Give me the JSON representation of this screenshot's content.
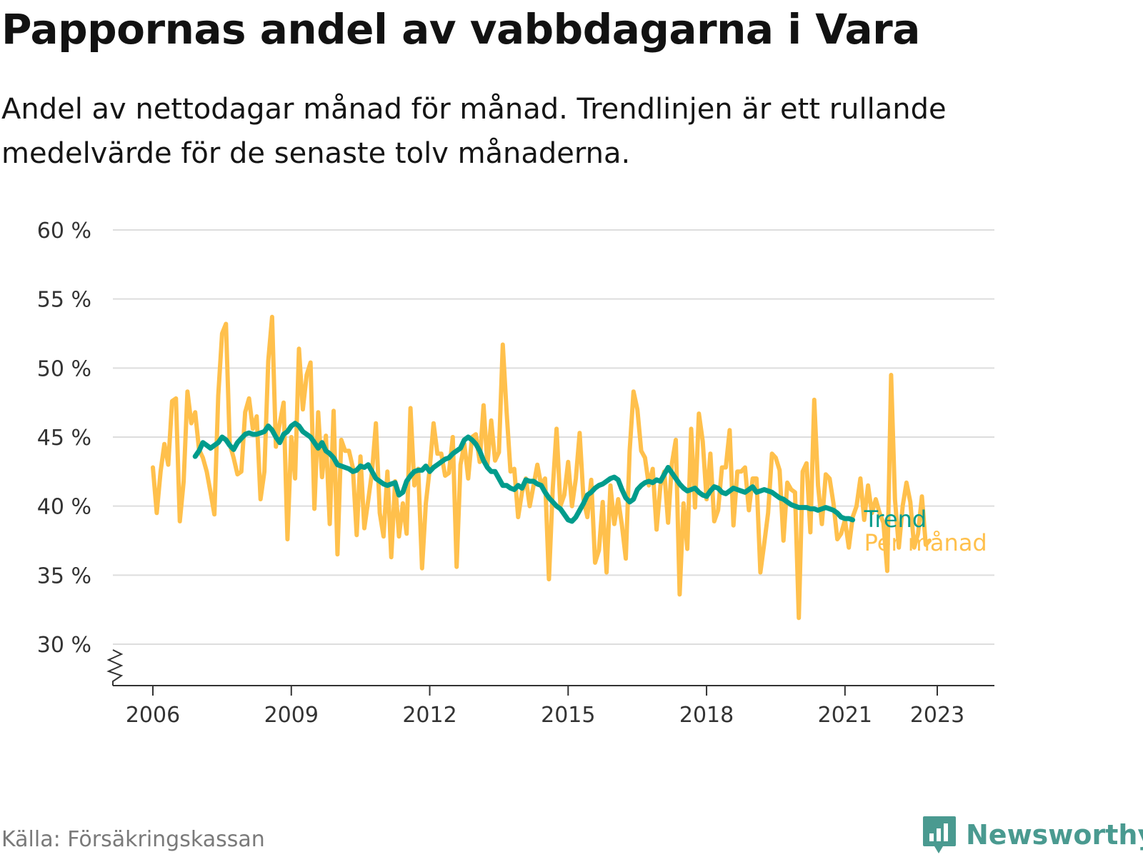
{
  "title": "Pappornas andel av vabbdagarna i Vara",
  "subtitle": "Andel av nettodagar månad för månad. Trendlinjen är ett rullande medelvärde för de senaste tolv månaderna.",
  "source": "Källa: Försäkringskassan",
  "brand": "Newsworthy",
  "colors": {
    "monthly": "#ffc04c",
    "trend": "#009c8c",
    "grid": "#dddddd",
    "axis": "#333333",
    "brand": "#4a9a90"
  },
  "chart_data": {
    "type": "line",
    "title": "Pappornas andel av vabbdagarna i Vara",
    "xlabel": "",
    "ylabel": "",
    "xlim": [
      2005.9,
      2024.3
    ],
    "ylim": [
      30,
      60
    ],
    "x_ticks": [
      2006,
      2009,
      2012,
      2015,
      2018,
      2021,
      2023
    ],
    "x_tick_labels": [
      "2006",
      "2009",
      "2012",
      "2015",
      "2018",
      "2021",
      "2023"
    ],
    "y_ticks": [
      30,
      35,
      40,
      45,
      50,
      55,
      60
    ],
    "y_tick_labels": [
      "30 %",
      "35 %",
      "40 %",
      "45 %",
      "50 %",
      "55 %",
      "60 %"
    ],
    "grid": "horizontal",
    "axis_break": true,
    "legend": "direct labels at line ends (right)",
    "series": [
      {
        "name": "Per månad",
        "color": "#ffc04c",
        "start": "2006-01",
        "frequency": "monthly",
        "values": [
          42.8,
          39.5,
          42.5,
          44.5,
          43.0,
          47.6,
          47.8,
          38.9,
          41.8,
          48.3,
          46.0,
          46.8,
          44.1,
          43.5,
          42.5,
          41.0,
          39.4,
          48.0,
          52.5,
          53.2,
          44.5,
          43.5,
          42.3,
          42.5,
          46.8,
          47.8,
          45.6,
          46.5,
          40.5,
          42.5,
          50.5,
          53.7,
          44.3,
          46.0,
          47.5,
          37.6,
          45.0,
          42.0,
          51.4,
          47.0,
          49.5,
          50.4,
          39.8,
          46.8,
          42.1,
          45.1,
          38.7,
          46.9,
          36.5,
          44.8,
          44.0,
          44.0,
          42.8,
          37.9,
          43.6,
          38.4,
          40.4,
          42.5,
          46.0,
          39.5,
          37.8,
          42.5,
          36.3,
          41.8,
          37.8,
          40.2,
          38.0,
          47.1,
          41.5,
          42.7,
          35.5,
          40.2,
          42.7,
          46.0,
          43.8,
          43.8,
          42.2,
          42.4,
          45.0,
          35.6,
          43.0,
          44.5,
          42.0,
          45.0,
          45.2,
          43.2,
          47.3,
          43.0,
          46.2,
          43.3,
          43.9,
          51.7,
          46.8,
          42.5,
          42.7,
          39.2,
          41.0,
          42.0,
          40.0,
          41.5,
          43.0,
          41.5,
          42.0,
          34.7,
          41.3,
          45.6,
          40.0,
          40.8,
          43.2,
          40.0,
          42.0,
          45.3,
          40.5,
          39.2,
          41.9,
          35.9,
          36.8,
          40.3,
          35.2,
          41.5,
          38.7,
          40.5,
          38.6,
          36.2,
          44.0,
          48.3,
          47.0,
          44.0,
          43.5,
          41.5,
          42.7,
          38.3,
          41.5,
          42.5,
          38.8,
          43.1,
          44.8,
          33.6,
          40.2,
          36.9,
          45.6,
          39.9,
          46.7,
          44.7,
          40.5,
          43.8,
          38.9,
          39.7,
          42.8,
          42.8,
          45.5,
          38.6,
          42.5,
          42.5,
          42.8,
          39.7,
          42.0,
          42.0,
          35.2,
          37.3,
          39.5,
          43.8,
          43.5,
          42.6,
          37.5,
          41.7,
          41.2,
          41.0,
          31.9,
          42.5,
          43.1,
          38.1,
          47.7,
          41.5,
          38.7,
          42.3,
          42.0,
          40.2,
          37.6,
          38.0,
          39.0,
          37.0,
          39.2,
          40.0,
          42.0,
          39.0,
          41.5,
          39.5,
          40.5,
          39.5,
          38.8,
          35.3,
          49.5,
          40.5,
          37.0,
          40.0,
          41.7,
          40.3,
          37.0,
          38.0,
          40.7,
          37.2,
          37.5
        ]
      },
      {
        "name": "Trend",
        "color": "#009c8c",
        "start": "2006-12",
        "frequency": "monthly",
        "values": [
          43.6,
          44.0,
          44.6,
          44.4,
          44.2,
          44.4,
          44.6,
          45.0,
          44.8,
          44.4,
          44.1,
          44.6,
          44.9,
          45.2,
          45.3,
          45.2,
          45.2,
          45.3,
          45.4,
          45.8,
          45.5,
          45.0,
          44.6,
          45.2,
          45.4,
          45.8,
          46.0,
          45.8,
          45.4,
          45.2,
          45.0,
          44.6,
          44.2,
          44.6,
          44.0,
          43.8,
          43.5,
          43.0,
          42.9,
          42.8,
          42.7,
          42.5,
          42.6,
          42.9,
          42.8,
          43.0,
          42.5,
          42.0,
          41.8,
          41.6,
          41.5,
          41.6,
          41.7,
          40.8,
          41.0,
          41.8,
          42.2,
          42.5,
          42.6,
          42.6,
          42.9,
          42.5,
          42.8,
          43.0,
          43.2,
          43.4,
          43.5,
          43.8,
          44.0,
          44.2,
          44.8,
          45.0,
          44.8,
          44.5,
          44.0,
          43.3,
          42.8,
          42.5,
          42.5,
          42.0,
          41.5,
          41.5,
          41.3,
          41.2,
          41.5,
          41.3,
          41.9,
          41.8,
          41.8,
          41.6,
          41.5,
          41.0,
          40.6,
          40.3,
          40.0,
          39.8,
          39.4,
          39.0,
          38.9,
          39.2,
          39.7,
          40.2,
          40.8,
          41.0,
          41.3,
          41.5,
          41.6,
          41.8,
          42.0,
          42.1,
          41.9,
          41.2,
          40.6,
          40.3,
          40.5,
          41.2,
          41.5,
          41.7,
          41.8,
          41.7,
          41.9,
          41.8,
          42.3,
          42.8,
          42.4,
          42.0,
          41.6,
          41.3,
          41.1,
          41.2,
          41.3,
          41.0,
          40.8,
          40.7,
          41.1,
          41.4,
          41.3,
          41.0,
          40.9,
          41.1,
          41.3,
          41.2,
          41.1,
          41.0,
          41.2,
          41.4,
          41.0,
          41.1,
          41.2,
          41.1,
          41.0,
          40.8,
          40.6,
          40.5,
          40.3,
          40.1,
          40.0,
          39.9,
          39.9,
          39.9,
          39.8,
          39.8,
          39.7,
          39.8,
          39.9,
          39.8,
          39.7,
          39.5,
          39.2,
          39.1,
          39.1,
          39.0
        ]
      }
    ],
    "annotations": [
      {
        "text": "Trend",
        "series": "Trend"
      },
      {
        "text": "Per månad",
        "series": "Per månad"
      }
    ]
  }
}
